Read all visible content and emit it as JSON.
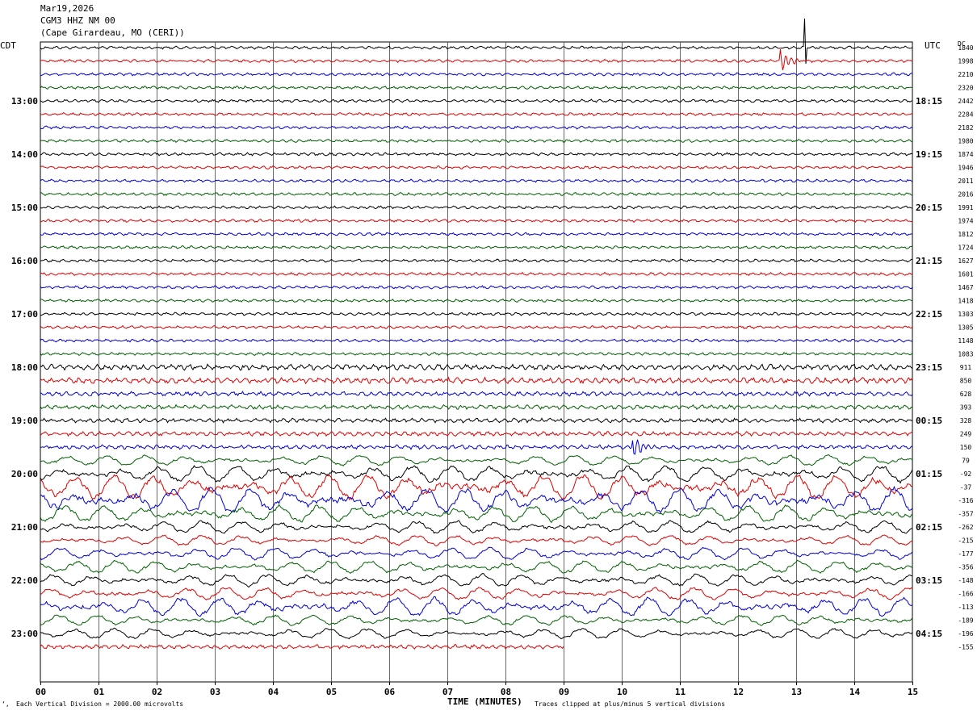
{
  "header": {
    "date": "Mar19,2026",
    "station": "CGM3 HHZ NM 00",
    "location": "(Cape Girardeau, MO (CERI))"
  },
  "left_tz": "CDT",
  "right_tz": "UTC",
  "dc_label": "DC",
  "footer": {
    "scale_note": "Each Vertical Division = 2000.00 microvolts",
    "x_title": "TIME (MINUTES)",
    "clip_note": "Traces clipped at plus/minus 5 vertical divisions",
    "corner_mark": "‘‚"
  },
  "chart_data": {
    "type": "line",
    "subtype": "helicorder",
    "x_axis": {
      "label": "TIME (MINUTES)",
      "range": [
        0,
        15
      ],
      "ticks": [
        "00",
        "01",
        "02",
        "03",
        "04",
        "05",
        "06",
        "07",
        "08",
        "09",
        "10",
        "11",
        "12",
        "13",
        "14",
        "15"
      ]
    },
    "minutes_per_line": 15,
    "trace_colors": [
      "#000000",
      "#e00000",
      "#0000d0",
      "#006000"
    ],
    "left_hour_labels": [
      "13:00",
      "14:00",
      "15:00",
      "16:00",
      "17:00",
      "18:00",
      "19:00",
      "20:00",
      "21:00",
      "22:00",
      "23:00"
    ],
    "right_hour_labels": [
      "18:15",
      "19:15",
      "20:15",
      "21:15",
      "22:15",
      "23:15",
      "00:15",
      "01:15",
      "02:15",
      "03:15",
      "04:15"
    ],
    "hour_label_every_n_lines": 4,
    "first_labeled_line": 4,
    "line_count": 46,
    "last_line_end_minute": 9,
    "dc_offsets": [
      1840,
      1998,
      2210,
      2320,
      2442,
      2284,
      2182,
      1980,
      1874,
      1946,
      2011,
      2016,
      1991,
      1974,
      1812,
      1724,
      1627,
      1601,
      1467,
      1418,
      1303,
      1305,
      1148,
      1083,
      911,
      850,
      628,
      393,
      328,
      249,
      150,
      79,
      -92,
      -37,
      -316,
      -357,
      -262,
      -215,
      -177,
      -356,
      -148,
      -166,
      -113,
      -189,
      -196,
      -155
    ],
    "trace_amplitude_level": [
      1,
      1,
      1,
      1,
      1,
      1,
      1,
      1,
      1,
      1,
      1,
      1,
      1,
      1,
      1,
      1,
      1,
      1,
      1,
      1,
      1,
      1,
      1,
      1,
      2,
      2,
      1.5,
      1.5,
      1.5,
      1.5,
      1.5,
      2.5,
      4,
      6,
      6,
      4,
      3,
      2.5,
      3,
      3,
      3,
      3,
      4.5,
      2.5,
      2.5,
      1.5
    ],
    "events": [
      {
        "line": 1,
        "minute": 12.75,
        "note": "local event burst"
      },
      {
        "line": 0,
        "minute": 13.15,
        "note": "spike"
      },
      {
        "line": 30,
        "minute": 10.2,
        "note": "event arrival"
      }
    ]
  }
}
